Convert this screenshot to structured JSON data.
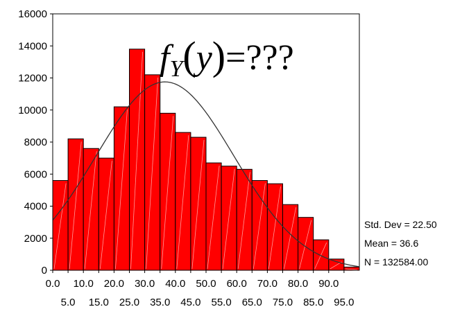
{
  "annotation": {
    "f": "f",
    "sub": "Y",
    "open": "(",
    "var": "y",
    "close": ")",
    "rest": "=???"
  },
  "stats": {
    "std_dev": "Std. Dev = 22.50",
    "mean": "Mean = 36.6",
    "n": "N = 132584.00"
  },
  "chart_data": {
    "type": "bar",
    "subtype": "histogram",
    "bin_width": 5,
    "bin_starts": [
      0,
      5,
      10,
      15,
      20,
      25,
      30,
      35,
      40,
      45,
      50,
      55,
      60,
      65,
      70,
      75,
      80,
      85,
      90,
      95
    ],
    "values": [
      5600,
      8200,
      7600,
      7000,
      10200,
      13800,
      12200,
      9800,
      8600,
      8300,
      6700,
      6500,
      6300,
      5600,
      5400,
      4100,
      3300,
      1900,
      700,
      200
    ],
    "x_tick_labels_top": [
      "0.0",
      "10.0",
      "20.0",
      "30.0",
      "40.0",
      "50.0",
      "60.0",
      "70.0",
      "80.0",
      "90.0"
    ],
    "x_tick_labels_bottom": [
      "5.0",
      "15.0",
      "25.0",
      "35.0",
      "45.0",
      "55.0",
      "65.0",
      "75.0",
      "85.0",
      "95.0"
    ],
    "y_tick_labels": [
      "0",
      "2000",
      "4000",
      "6000",
      "8000",
      "10000",
      "12000",
      "14000",
      "16000"
    ],
    "ylim": [
      0,
      16000
    ],
    "xlim": [
      0,
      100
    ],
    "normal_curve": {
      "mean": 36.6,
      "std_dev": 22.5,
      "n": 132584
    },
    "grid": false,
    "colors": {
      "bar": "#ff0000",
      "bar_edge": "#000000",
      "curve": "#333333"
    }
  }
}
